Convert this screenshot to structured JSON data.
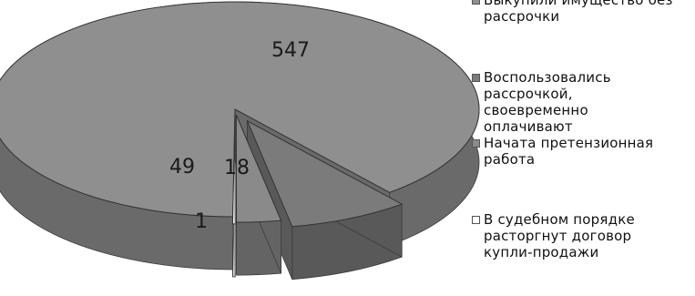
{
  "chart_data": {
    "type": "pie",
    "title": "",
    "slices": [
      {
        "label": "Выкупили имущество без рассрочки",
        "value": 547,
        "data_label": "547",
        "color": "#8f8f8f",
        "side_color": "#6a6a6a"
      },
      {
        "label": "Воспользовались рассрочкой, своевременно оплачивают",
        "value": 49,
        "data_label": "49",
        "color": "#7b7b7b",
        "side_color": "#595959"
      },
      {
        "label": "Начата претензионная работа",
        "value": 18,
        "data_label": "18",
        "color": "#8a8a8a",
        "side_color": "#646464"
      },
      {
        "label": "В судебном порядке расторгнут договор купли-продажи",
        "value": 1,
        "data_label": "1",
        "color": "#ffffff",
        "side_color": "#dddddd"
      }
    ],
    "legend_position": "right",
    "style": "3d-exploded"
  }
}
